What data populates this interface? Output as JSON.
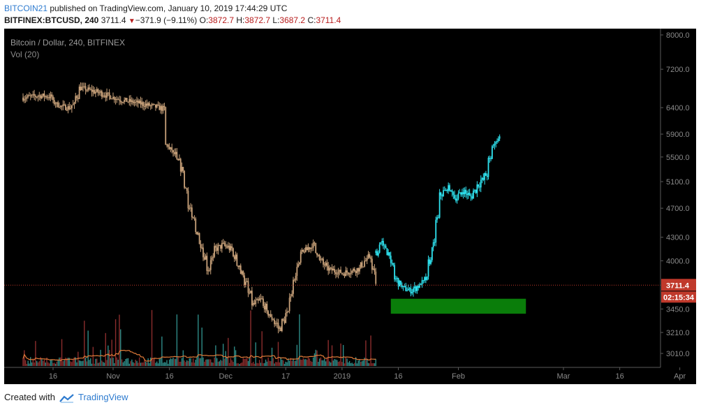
{
  "header": {
    "publisher": "BITCOIN21",
    "published_text": "published on TradingView.com, January 10, 2019 17:44:29 UTC",
    "symbol": "BITFINEX:BTCUSD, 240",
    "last": "3711.4",
    "change": "−371.9 (−9.11%)",
    "o_label": "O:",
    "o_value": "3872.7",
    "h_label": "H:",
    "h_value": "3872.7",
    "l_label": "L:",
    "l_value": "3687.2",
    "c_label": "C:",
    "c_value": "3711.4"
  },
  "footer": {
    "created_with": "Created with",
    "brand": "TradingView"
  },
  "colors": {
    "background": "#000000",
    "candles": "#c9a27a",
    "projection": "#2fe3f0",
    "volume_ma": "#e07b39",
    "volume_bars": [
      "#2e8b87",
      "#8b2d2d"
    ],
    "price_line": "#c0392b",
    "zone": "#0a7d0a",
    "axis_text": "#8a8a8a"
  },
  "chart_data": {
    "type": "candlestick",
    "title": "Bitcoin / Dollar, 240, BITFINEX",
    "indicator": "Vol (20)",
    "price_scale": "log",
    "yticks": [
      8000.0,
      7200.0,
      6400.0,
      5900.0,
      5500.0,
      5100.0,
      4700.0,
      4300.0,
      4000.0,
      3450.0,
      3210.0,
      3010.0
    ],
    "xticks": [
      "16",
      "Nov",
      "16",
      "Dec",
      "17",
      "2019",
      "16",
      "Feb",
      "Mar",
      "16",
      "Apr"
    ],
    "last_price_label": "3711.4",
    "countdown_label": "02:15:34",
    "historical_close_path": [
      {
        "date": "2018-10-08",
        "close": 6600
      },
      {
        "date": "2018-10-12",
        "close": 6640
      },
      {
        "date": "2018-10-15",
        "close": 6620
      },
      {
        "date": "2018-10-16",
        "close": 6500
      },
      {
        "date": "2018-10-18",
        "close": 6420
      },
      {
        "date": "2018-10-20",
        "close": 6400
      },
      {
        "date": "2018-10-21",
        "close": 6450
      },
      {
        "date": "2018-10-23",
        "close": 6800
      },
      {
        "date": "2018-10-28",
        "close": 6700
      },
      {
        "date": "2018-11-03",
        "close": 6550
      },
      {
        "date": "2018-11-08",
        "close": 6480
      },
      {
        "date": "2018-11-14",
        "close": 6380
      },
      {
        "date": "2018-11-15",
        "close": 5700
      },
      {
        "date": "2018-11-17",
        "close": 5550
      },
      {
        "date": "2018-11-19",
        "close": 5300
      },
      {
        "date": "2018-11-21",
        "close": 4700
      },
      {
        "date": "2018-11-24",
        "close": 4200
      },
      {
        "date": "2018-11-26",
        "close": 3900
      },
      {
        "date": "2018-11-28",
        "close": 4150
      },
      {
        "date": "2018-11-30",
        "close": 4200
      },
      {
        "date": "2018-12-02",
        "close": 4150
      },
      {
        "date": "2018-12-05",
        "close": 3850
      },
      {
        "date": "2018-12-08",
        "close": 3500
      },
      {
        "date": "2018-12-10",
        "close": 3550
      },
      {
        "date": "2018-12-12",
        "close": 3400
      },
      {
        "date": "2018-12-15",
        "close": 3250
      },
      {
        "date": "2018-12-17",
        "close": 3400
      },
      {
        "date": "2018-12-19",
        "close": 3800
      },
      {
        "date": "2018-12-21",
        "close": 4100
      },
      {
        "date": "2018-12-24",
        "close": 4200
      },
      {
        "date": "2018-12-26",
        "close": 4000
      },
      {
        "date": "2018-12-28",
        "close": 3900
      },
      {
        "date": "2019-01-01",
        "close": 3850
      },
      {
        "date": "2019-01-05",
        "close": 3900
      },
      {
        "date": "2019-01-08",
        "close": 4050
      },
      {
        "date": "2019-01-10",
        "close": 3711
      }
    ],
    "projection_path": [
      {
        "date": "2019-01-10",
        "close": 4100
      },
      {
        "date": "2019-01-11",
        "close": 4230
      },
      {
        "date": "2019-01-13",
        "close": 4100
      },
      {
        "date": "2019-01-15",
        "close": 3780
      },
      {
        "date": "2019-01-17",
        "close": 3680
      },
      {
        "date": "2019-01-19",
        "close": 3650
      },
      {
        "date": "2019-01-21",
        "close": 3700
      },
      {
        "date": "2019-01-23",
        "close": 3780
      },
      {
        "date": "2019-01-25",
        "close": 4200
      },
      {
        "date": "2019-01-27",
        "close": 4900
      },
      {
        "date": "2019-01-29",
        "close": 5000
      },
      {
        "date": "2019-01-31",
        "close": 4850
      },
      {
        "date": "2019-02-02",
        "close": 4950
      },
      {
        "date": "2019-02-04",
        "close": 4870
      },
      {
        "date": "2019-02-06",
        "close": 5050
      },
      {
        "date": "2019-02-08",
        "close": 5200
      },
      {
        "date": "2019-02-10",
        "close": 5700
      },
      {
        "date": "2019-02-12",
        "close": 5900
      }
    ],
    "zone": {
      "date_start": "2019-01-14",
      "date_end": "2019-02-19",
      "price_top": 3560,
      "price_bottom": 3400
    }
  }
}
